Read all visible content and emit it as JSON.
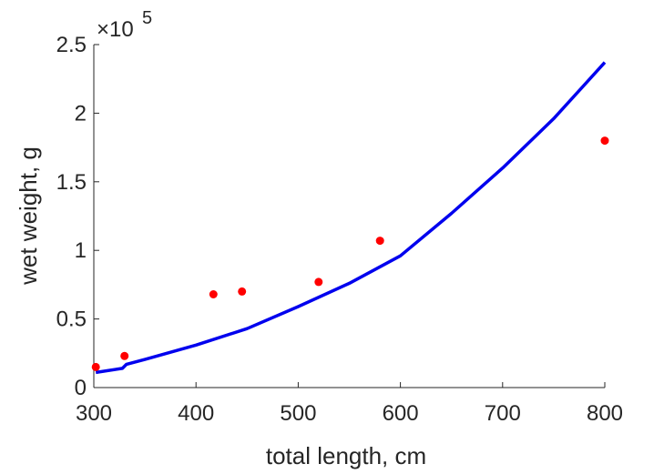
{
  "chart_data": {
    "type": "scatter",
    "xlabel": "total length, cm",
    "ylabel": "wet weight, g",
    "y_exponent_label": "×10",
    "y_exponent_power": "5",
    "xlim": [
      300,
      800
    ],
    "ylim": [
      0,
      250000
    ],
    "x_ticks": [
      300,
      400,
      500,
      600,
      700,
      800
    ],
    "x_tick_labels": [
      "300",
      "400",
      "500",
      "600",
      "700",
      "800"
    ],
    "y_ticks": [
      0,
      50000,
      100000,
      150000,
      200000,
      250000
    ],
    "y_tick_labels": [
      "0",
      "0.5",
      "1",
      "1.5",
      "2",
      "2.5"
    ],
    "grid": false,
    "series": [
      {
        "kind": "points",
        "color": "#ff0000",
        "x": [
          302,
          330,
          417,
          445,
          520,
          580,
          800
        ],
        "y": [
          15000,
          23000,
          68000,
          70000,
          77000,
          107000,
          180000
        ]
      },
      {
        "kind": "line",
        "color": "#0000ee",
        "x": [
          302,
          328,
          332,
          350,
          400,
          450,
          500,
          550,
          600,
          650,
          700,
          750,
          800
        ],
        "y": [
          11000,
          14000,
          17000,
          20500,
          31000,
          43000,
          59000,
          76000,
          96000,
          127000,
          160000,
          196000,
          237000
        ]
      }
    ]
  }
}
